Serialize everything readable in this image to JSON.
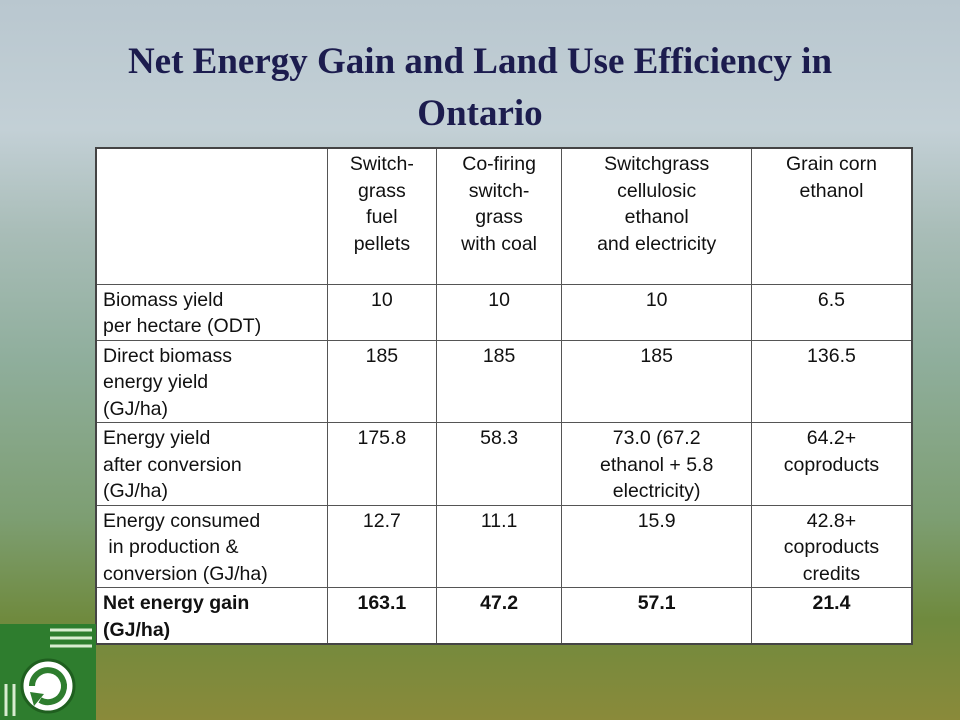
{
  "title": [
    "Net Energy Gain and Land Use Efficiency in",
    "Ontario"
  ],
  "table": {
    "columns": [
      [
        "Switch-",
        "grass",
        "fuel",
        "pellets"
      ],
      [
        "Co-firing",
        "switch-",
        "grass",
        "with coal"
      ],
      [
        "Switchgrass",
        "cellulosic",
        "ethanol",
        "and electricity"
      ],
      [
        "Grain corn",
        "ethanol"
      ]
    ],
    "rows": [
      {
        "label": [
          "Biomass yield",
          "per hectare (ODT)"
        ],
        "cells": [
          [
            "10"
          ],
          [
            "10"
          ],
          [
            "10"
          ],
          [
            "6.5"
          ]
        ]
      },
      {
        "label": [
          "Direct biomass",
          "energy yield",
          "(GJ/ha)"
        ],
        "cells": [
          [
            "185"
          ],
          [
            "185"
          ],
          [
            "185"
          ],
          [
            "136.5"
          ]
        ]
      },
      {
        "label": [
          "Energy yield",
          "after conversion",
          "(GJ/ha)"
        ],
        "cells": [
          [
            "175.8"
          ],
          [
            "58.3"
          ],
          [
            "73.0 (67.2",
            "ethanol + 5.8",
            "electricity)"
          ],
          [
            "64.2+",
            "coproducts"
          ]
        ]
      },
      {
        "label": [
          "Energy consumed",
          " in production &",
          "conversion (GJ/ha)"
        ],
        "cells": [
          [
            "12.7"
          ],
          [
            "11.1"
          ],
          [
            "15.9"
          ],
          [
            "42.8+",
            "coproducts",
            "credits"
          ]
        ]
      },
      {
        "label": [
          "Net energy gain",
          "(GJ/ha)"
        ],
        "cells": [
          [
            "163.1"
          ],
          [
            "47.2"
          ],
          [
            "57.1"
          ],
          [
            "21.4"
          ]
        ],
        "bold": true
      }
    ]
  }
}
